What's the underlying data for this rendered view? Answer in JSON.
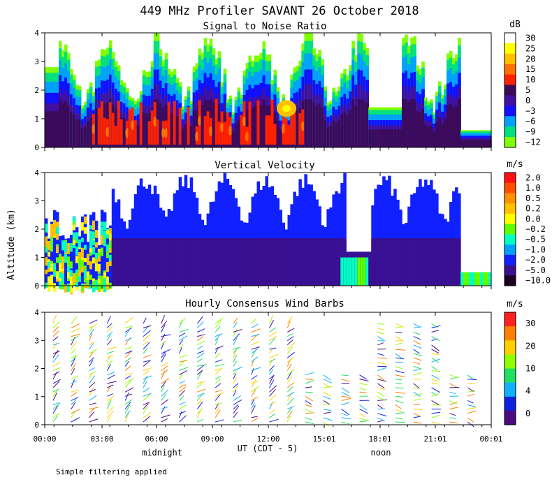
{
  "figure": {
    "title": "449 MHz Profiler SAVANT 26 October 2018",
    "ylabel": "Altitude (km)",
    "xlabel": "UT  (CDT - 5)",
    "time_ticks": [
      "00:00",
      "03:00",
      "06:00",
      "09:00",
      "12:00",
      "15:01",
      "18:01",
      "21:01",
      "00:01"
    ],
    "local_labels": [
      "midnight",
      "noon"
    ],
    "footnote": "Simple filtering applied"
  },
  "chart_data": [
    {
      "type": "heatmap",
      "title": "Signal to Noise Ratio",
      "ylabel": "Altitude (km)",
      "ylim": [
        0,
        4
      ],
      "yticks": [
        0,
        1,
        2,
        3,
        4
      ],
      "colorbar": {
        "unit": "dB",
        "labels": [
          "30",
          "25",
          "20",
          "15",
          "10",
          "5",
          "0",
          "−3",
          "−6",
          "−9",
          "−12"
        ],
        "colors": [
          "#ffffff",
          "#ffff00",
          "#ffc000",
          "#ff7000",
          "#ff2000",
          "#3c0a5a",
          "#4010a0",
          "#1010ff",
          "#00a0ff",
          "#00e080",
          "#80ff00"
        ]
      }
    },
    {
      "type": "heatmap",
      "title": "Vertical Velocity",
      "ylabel": "Altitude (km)",
      "ylim": [
        0,
        4
      ],
      "yticks": [
        0,
        1,
        2,
        3,
        4
      ],
      "colorbar": {
        "unit": "m/s",
        "labels": [
          "2.0",
          "1.0",
          "0.5",
          "0.2",
          "0.0",
          "−0.2",
          "−0.5",
          "−1.0",
          "−2.0",
          "−5.0",
          "−10.0"
        ],
        "colors": [
          "#ff1010",
          "#ff5000",
          "#ff9000",
          "#ffc000",
          "#ffff00",
          "#60ff00",
          "#00ffc0",
          "#00a0ff",
          "#1020ff",
          "#3a1090",
          "#200020"
        ]
      }
    },
    {
      "type": "scatter",
      "title": "Hourly Consensus Wind Barbs",
      "ylabel": "Altitude (km)",
      "ylim": [
        0,
        4
      ],
      "yticks": [
        0,
        1,
        2,
        3,
        4
      ],
      "colorbar": {
        "unit": "m/s",
        "labels": [
          "30",
          "20",
          "10",
          "4",
          "0"
        ],
        "colors": [
          "#ff2020",
          "#ff8000",
          "#ffd000",
          "#90ff00",
          "#20e060",
          "#10b0ff",
          "#1020e0",
          "#4a0a80"
        ]
      }
    }
  ]
}
